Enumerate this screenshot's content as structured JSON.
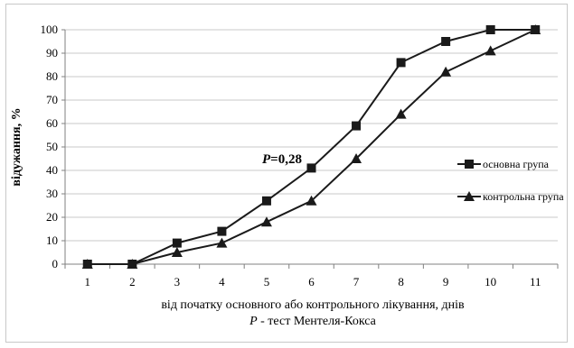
{
  "chart_data": {
    "type": "line",
    "x": [
      1,
      2,
      3,
      4,
      5,
      6,
      7,
      8,
      9,
      10,
      11
    ],
    "series": [
      {
        "name": "основна група",
        "marker": "square",
        "values": [
          0,
          0,
          9,
          14,
          27,
          41,
          59,
          86,
          95,
          100,
          100
        ]
      },
      {
        "name": "контрольна група",
        "marker": "triangle",
        "values": [
          0,
          0,
          5,
          9,
          18,
          27,
          45,
          64,
          82,
          91,
          100
        ]
      }
    ],
    "xlabel": "від початку основного або контрольного лікування, днів",
    "xlabel_sub_italic": "P",
    "xlabel_sub_rest": " - тест Ментеля-Кокса",
    "ylabel": "відужання, %",
    "ylim": [
      0,
      100
    ],
    "yticks": [
      0,
      10,
      20,
      30,
      40,
      50,
      60,
      70,
      80,
      90,
      100
    ],
    "xticks": [
      1,
      2,
      3,
      4,
      5,
      6,
      7,
      8,
      9,
      10,
      11
    ],
    "annotation": {
      "italic": "P",
      "text": "=0,28",
      "x": 6,
      "y": 41
    },
    "legend_position": "right",
    "grid": "horizontal",
    "colors": {
      "line": "#1a1a1a",
      "grid": "#c8c8c8",
      "axis": "#808080"
    }
  }
}
